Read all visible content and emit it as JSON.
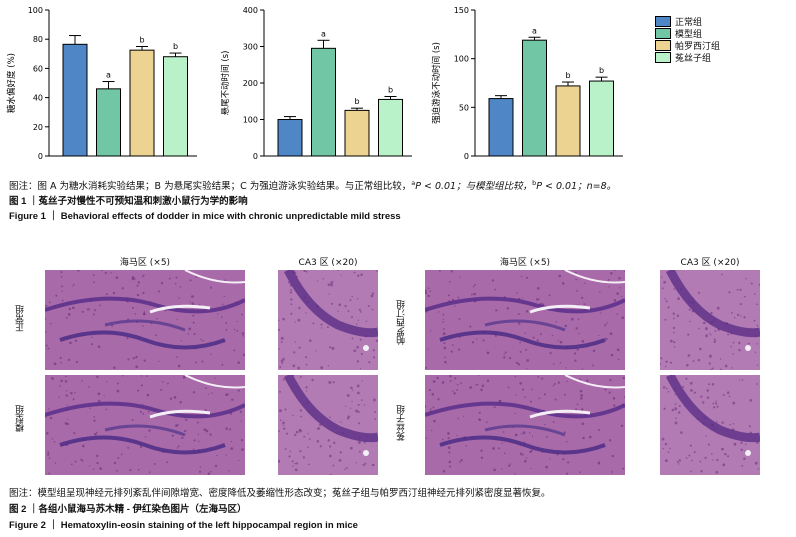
{
  "figure1": {
    "legend": {
      "items": [
        {
          "label": "正常组",
          "color": "#4e86c6"
        },
        {
          "label": "模型组",
          "color": "#71c6a6"
        },
        {
          "label": "帕罗西汀组",
          "color": "#ecd391"
        },
        {
          "label": "菟丝子组",
          "color": "#b9f2c9"
        }
      ]
    },
    "caption": {
      "note_part1": "图注：图 A 为糖水消耗实验结果；B 为悬尾实验结果；C 为强迫游泳实验结果。与正常组比较，",
      "sup_a": "a",
      "p_a": "P < 0.01；与模型组比较，",
      "sup_b": "b",
      "p_b": "P < 0.01；n=8。",
      "title_cn": "图 1 ｜菟丝子对慢性不可预知温和刺激小鼠行为学的影响",
      "title_en": "Figure 1 ｜ Behavioral effects of dodder in mice with chronic unpredictable mild stress"
    }
  },
  "chart_data": [
    {
      "type": "bar",
      "categories": [
        "正常组",
        "模型组",
        "帕罗西汀组",
        "菟丝子组"
      ],
      "values": [
        76.5,
        46,
        72.5,
        68
      ],
      "errors": [
        6,
        5,
        2.5,
        2.5
      ],
      "annotations": [
        "",
        "a",
        "b",
        "b"
      ],
      "colors": [
        "#4e86c6",
        "#71c6a6",
        "#ecd391",
        "#b9f2c9"
      ],
      "ylabel": "糖水偏好度 (%)",
      "ylim": [
        0,
        100
      ],
      "yticks": [
        0,
        20,
        40,
        60,
        80,
        100
      ]
    },
    {
      "type": "bar",
      "categories": [
        "正常组",
        "模型组",
        "帕罗西汀组",
        "菟丝子组"
      ],
      "values": [
        100,
        295,
        125,
        155
      ],
      "errors": [
        8,
        22,
        6,
        8
      ],
      "annotations": [
        "",
        "a",
        "b",
        "b"
      ],
      "colors": [
        "#4e86c6",
        "#71c6a6",
        "#ecd391",
        "#b9f2c9"
      ],
      "ylabel": "悬尾不动时间 (s)",
      "ylim": [
        0,
        400
      ],
      "yticks": [
        0,
        100,
        200,
        300,
        400
      ]
    },
    {
      "type": "bar",
      "categories": [
        "正常组",
        "模型组",
        "帕罗西汀组",
        "菟丝子组"
      ],
      "values": [
        59,
        119,
        72,
        77
      ],
      "errors": [
        3,
        3,
        4,
        4
      ],
      "annotations": [
        "",
        "a",
        "b",
        "b"
      ],
      "colors": [
        "#4e86c6",
        "#71c6a6",
        "#ecd391",
        "#b9f2c9"
      ],
      "ylabel": "强迫游泳不动时间 (s)",
      "ylim": [
        0,
        150
      ],
      "yticks": [
        0,
        50,
        100,
        150
      ]
    }
  ],
  "figure2": {
    "col_labels": [
      "海马区 (×5)",
      "CA3 区 (×20)",
      "海马区 (×5)",
      "CA3 区 (×20)"
    ],
    "row_labels": [
      "正常组",
      "模型组",
      "帕罗西汀组",
      "菟丝子组"
    ],
    "caption": {
      "note": "图注：模型组呈现神经元排列紊乱伴间隙增宽、密度降低及萎缩性形态改变；菟丝子组与帕罗西汀组神经元排列紧密度显著恢复。",
      "title_cn": "图 2 ｜各组小鼠海马苏木精 - 伊红染色图片（左海马区）",
      "title_en": "Figure 2 ｜ Hematoxylin-eosin staining of the left hippocampal region in mice"
    }
  }
}
